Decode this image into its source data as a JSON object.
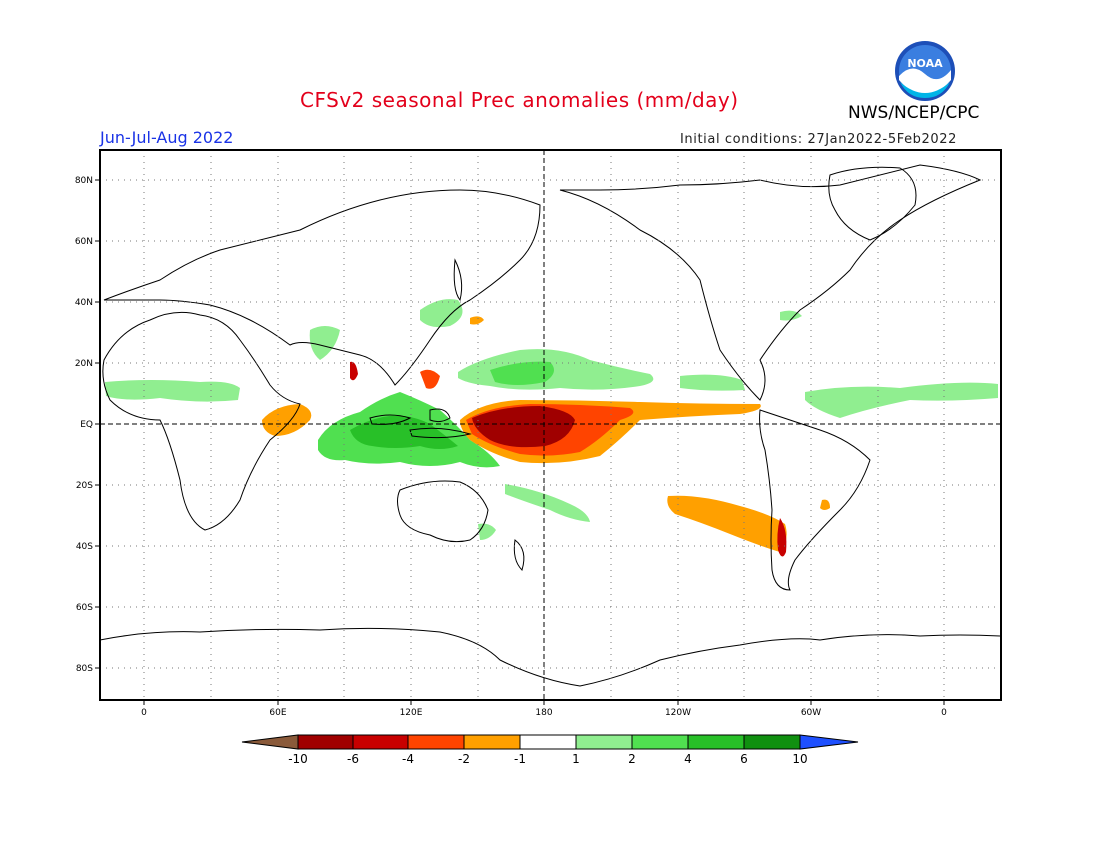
{
  "header": {
    "title": "CFSv2 seasonal Prec anomalies (mm/day)",
    "agency": "NWS/NCEP/CPC",
    "season": "Jun-Jul-Aug 2022",
    "initial_conditions": "Initial conditions: 27Jan2022-5Feb2022",
    "logo_text": "NOAA"
  },
  "map": {
    "lat_labels": [
      "80N",
      "60N",
      "40N",
      "20N",
      "EQ",
      "20S",
      "40S",
      "60S",
      "80S"
    ],
    "lon_labels": [
      "0",
      "60E",
      "120E",
      "180",
      "120W",
      "60W",
      "0"
    ],
    "grid": "dotted",
    "reference_lines": [
      "EQ",
      "180"
    ]
  },
  "colorbar": {
    "labels": [
      "-10",
      "-6",
      "-4",
      "-2",
      "-1",
      "1",
      "2",
      "4",
      "6",
      "10"
    ],
    "colors": [
      "#8a5a3a",
      "#a00000",
      "#c80000",
      "#ff4400",
      "#ffa000",
      "#ffffff",
      "#90ee90",
      "#50e050",
      "#28c028",
      "#109010",
      "#1e50ff"
    ]
  },
  "regions": [
    {
      "name": "western-central-pacific-dry",
      "sign": "negative",
      "level": "strong"
    },
    {
      "name": "equatorial-east-pacific-dry",
      "sign": "negative",
      "level": "moderate"
    },
    {
      "name": "maritime-continent-wet",
      "sign": "positive",
      "level": "moderate"
    },
    {
      "name": "north-pacific-itcz-wet",
      "sign": "positive",
      "level": "light"
    },
    {
      "name": "south-pacific-dry-band",
      "sign": "negative",
      "level": "moderate"
    },
    {
      "name": "sahel-atlantic-wet",
      "sign": "positive",
      "level": "light"
    },
    {
      "name": "east-africa-dry",
      "sign": "negative",
      "level": "moderate"
    }
  ]
}
